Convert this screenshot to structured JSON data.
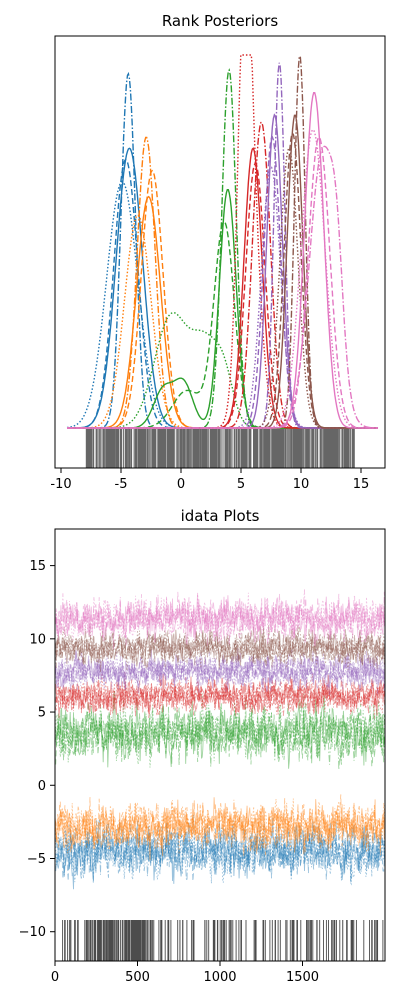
{
  "chart_data": [
    {
      "type": "line",
      "title": "Rank Posteriors",
      "xlabel": "",
      "ylabel": "",
      "xlim": [
        -10.5,
        17
      ],
      "x_ticks": [
        -10,
        -5,
        0,
        5,
        10,
        15
      ],
      "y_ticks_visible": false,
      "grid": false,
      "legend": "none",
      "line_styles": [
        "solid",
        "dashed",
        "dashdot",
        "dotted"
      ],
      "series": [
        {
          "color": "#1f77b4",
          "chains": [
            {
              "style": "solid",
              "modes": [
                [
                  -4.3,
                  1.1,
                  0.75
                ]
              ]
            },
            {
              "style": "dashed",
              "modes": [
                [
                  -4.6,
                  1.0,
                  0.72
                ]
              ]
            },
            {
              "style": "dashdot",
              "modes": [
                [
                  -4.4,
                  0.6,
                  0.95
                ]
              ]
            },
            {
              "style": "dotted",
              "modes": [
                [
                  -4.9,
                  1.3,
                  0.66
                ]
              ]
            }
          ]
        },
        {
          "color": "#ff7f0e",
          "chains": [
            {
              "style": "solid",
              "modes": [
                [
                  -2.7,
                  1.0,
                  0.62
                ]
              ]
            },
            {
              "style": "dashed",
              "modes": [
                [
                  -2.4,
                  0.9,
                  0.69
                ]
              ]
            },
            {
              "style": "dashdot",
              "modes": [
                [
                  -2.9,
                  0.75,
                  0.78
                ]
              ]
            },
            {
              "style": "dotted",
              "modes": [
                [
                  -3.6,
                  1.1,
                  0.57
                ]
              ]
            }
          ]
        },
        {
          "color": "#2ca02c",
          "chains": [
            {
              "style": "solid",
              "modes": [
                [
                  -1.5,
                  0.8,
                  0.1
                ],
                [
                  0.2,
                  0.8,
                  0.12
                ],
                [
                  3.9,
                  0.7,
                  0.64
                ]
              ]
            },
            {
              "style": "dashed",
              "modes": [
                [
                  3.6,
                  0.85,
                  0.55
                ],
                [
                  0.5,
                  1.2,
                  0.1
                ]
              ]
            },
            {
              "style": "dashdot",
              "modes": [
                [
                  4.0,
                  0.6,
                  0.96
                ]
              ]
            },
            {
              "style": "dotted",
              "modes": [
                [
                  -0.8,
                  1.4,
                  0.3
                ],
                [
                  2.0,
                  1.1,
                  0.2
                ],
                [
                  3.6,
                  0.8,
                  0.12
                ]
              ]
            }
          ]
        },
        {
          "color": "#d62728",
          "chains": [
            {
              "style": "solid",
              "modes": [
                [
                  6.0,
                  0.75,
                  0.75
                ]
              ]
            },
            {
              "style": "dashed",
              "modes": [
                [
                  6.2,
                  0.8,
                  0.71
                ]
              ]
            },
            {
              "style": "dashdot",
              "modes": [
                [
                  6.7,
                  0.75,
                  0.82
                ]
              ]
            },
            {
              "style": "dotted",
              "modes": [
                [
                  5.3,
                  0.55,
                  0.83
                ],
                [
                  5.8,
                  0.8,
                  0.55
                ]
              ]
            }
          ]
        },
        {
          "color": "#9467bd",
          "chains": [
            {
              "style": "solid",
              "modes": [
                [
                  7.8,
                  0.65,
                  0.84
                ]
              ]
            },
            {
              "style": "dashed",
              "modes": [
                [
                  7.6,
                  0.7,
                  0.78
                ]
              ]
            },
            {
              "style": "dashdot",
              "modes": [
                [
                  8.2,
                  0.45,
                  0.98
                ]
              ]
            },
            {
              "style": "dotted",
              "modes": [
                [
                  7.5,
                  0.8,
                  0.7
                ]
              ]
            }
          ]
        },
        {
          "color": "#8c564b",
          "chains": [
            {
              "style": "solid",
              "modes": [
                [
                  9.5,
                  0.65,
                  0.84
                ]
              ]
            },
            {
              "style": "dashed",
              "modes": [
                [
                  9.3,
                  0.7,
                  0.79
                ]
              ]
            },
            {
              "style": "dashdot",
              "modes": [
                [
                  9.9,
                  0.45,
                  1.0
                ]
              ]
            },
            {
              "style": "dotted",
              "modes": [
                [
                  9.0,
                  0.75,
                  0.75
                ]
              ]
            }
          ]
        },
        {
          "color": "#e377c2",
          "chains": [
            {
              "style": "solid",
              "modes": [
                [
                  11.1,
                  0.8,
                  0.9
                ]
              ]
            },
            {
              "style": "dashed",
              "modes": [
                [
                  11.5,
                  0.9,
                  0.78
                ]
              ]
            },
            {
              "style": "dashdot",
              "modes": [
                [
                  11.8,
                  1.1,
                  0.74
                ],
                [
                  13.0,
                  0.5,
                  0.2
                ]
              ]
            },
            {
              "style": "dotted",
              "modes": [
                [
                  11.0,
                  1.0,
                  0.8
                ]
              ]
            }
          ]
        }
      ],
      "rug": {
        "position": "bottom",
        "color": "#000000",
        "range": [
          -8.0,
          14.5
        ]
      }
    },
    {
      "type": "line",
      "title": "idata Plots",
      "xlabel": "",
      "ylabel": "",
      "xlim": [
        0,
        2000
      ],
      "ylim": [
        -12,
        17.5
      ],
      "x_ticks": [
        0,
        500,
        1000,
        1500
      ],
      "y_ticks": [
        -10,
        -5,
        0,
        5,
        10,
        15
      ],
      "grid": false,
      "legend": "none",
      "draws": 2000,
      "alpha": 0.45,
      "series": [
        {
          "color": "#1f77b4",
          "center": -4.5,
          "spread": 1.2
        },
        {
          "color": "#ff7f0e",
          "center": -2.8,
          "spread": 1.1
        },
        {
          "color": "#2ca02c",
          "center": 3.6,
          "spread": 1.3
        },
        {
          "color": "#d62728",
          "center": 6.1,
          "spread": 0.8
        },
        {
          "color": "#9467bd",
          "center": 7.8,
          "spread": 0.8
        },
        {
          "color": "#8c564b",
          "center": 9.4,
          "spread": 0.8
        },
        {
          "color": "#e377c2",
          "center": 11.4,
          "spread": 1.0
        }
      ],
      "rug": {
        "position": "bottom",
        "color": "#000000",
        "y_range": [
          -12,
          -9.2
        ]
      }
    }
  ]
}
